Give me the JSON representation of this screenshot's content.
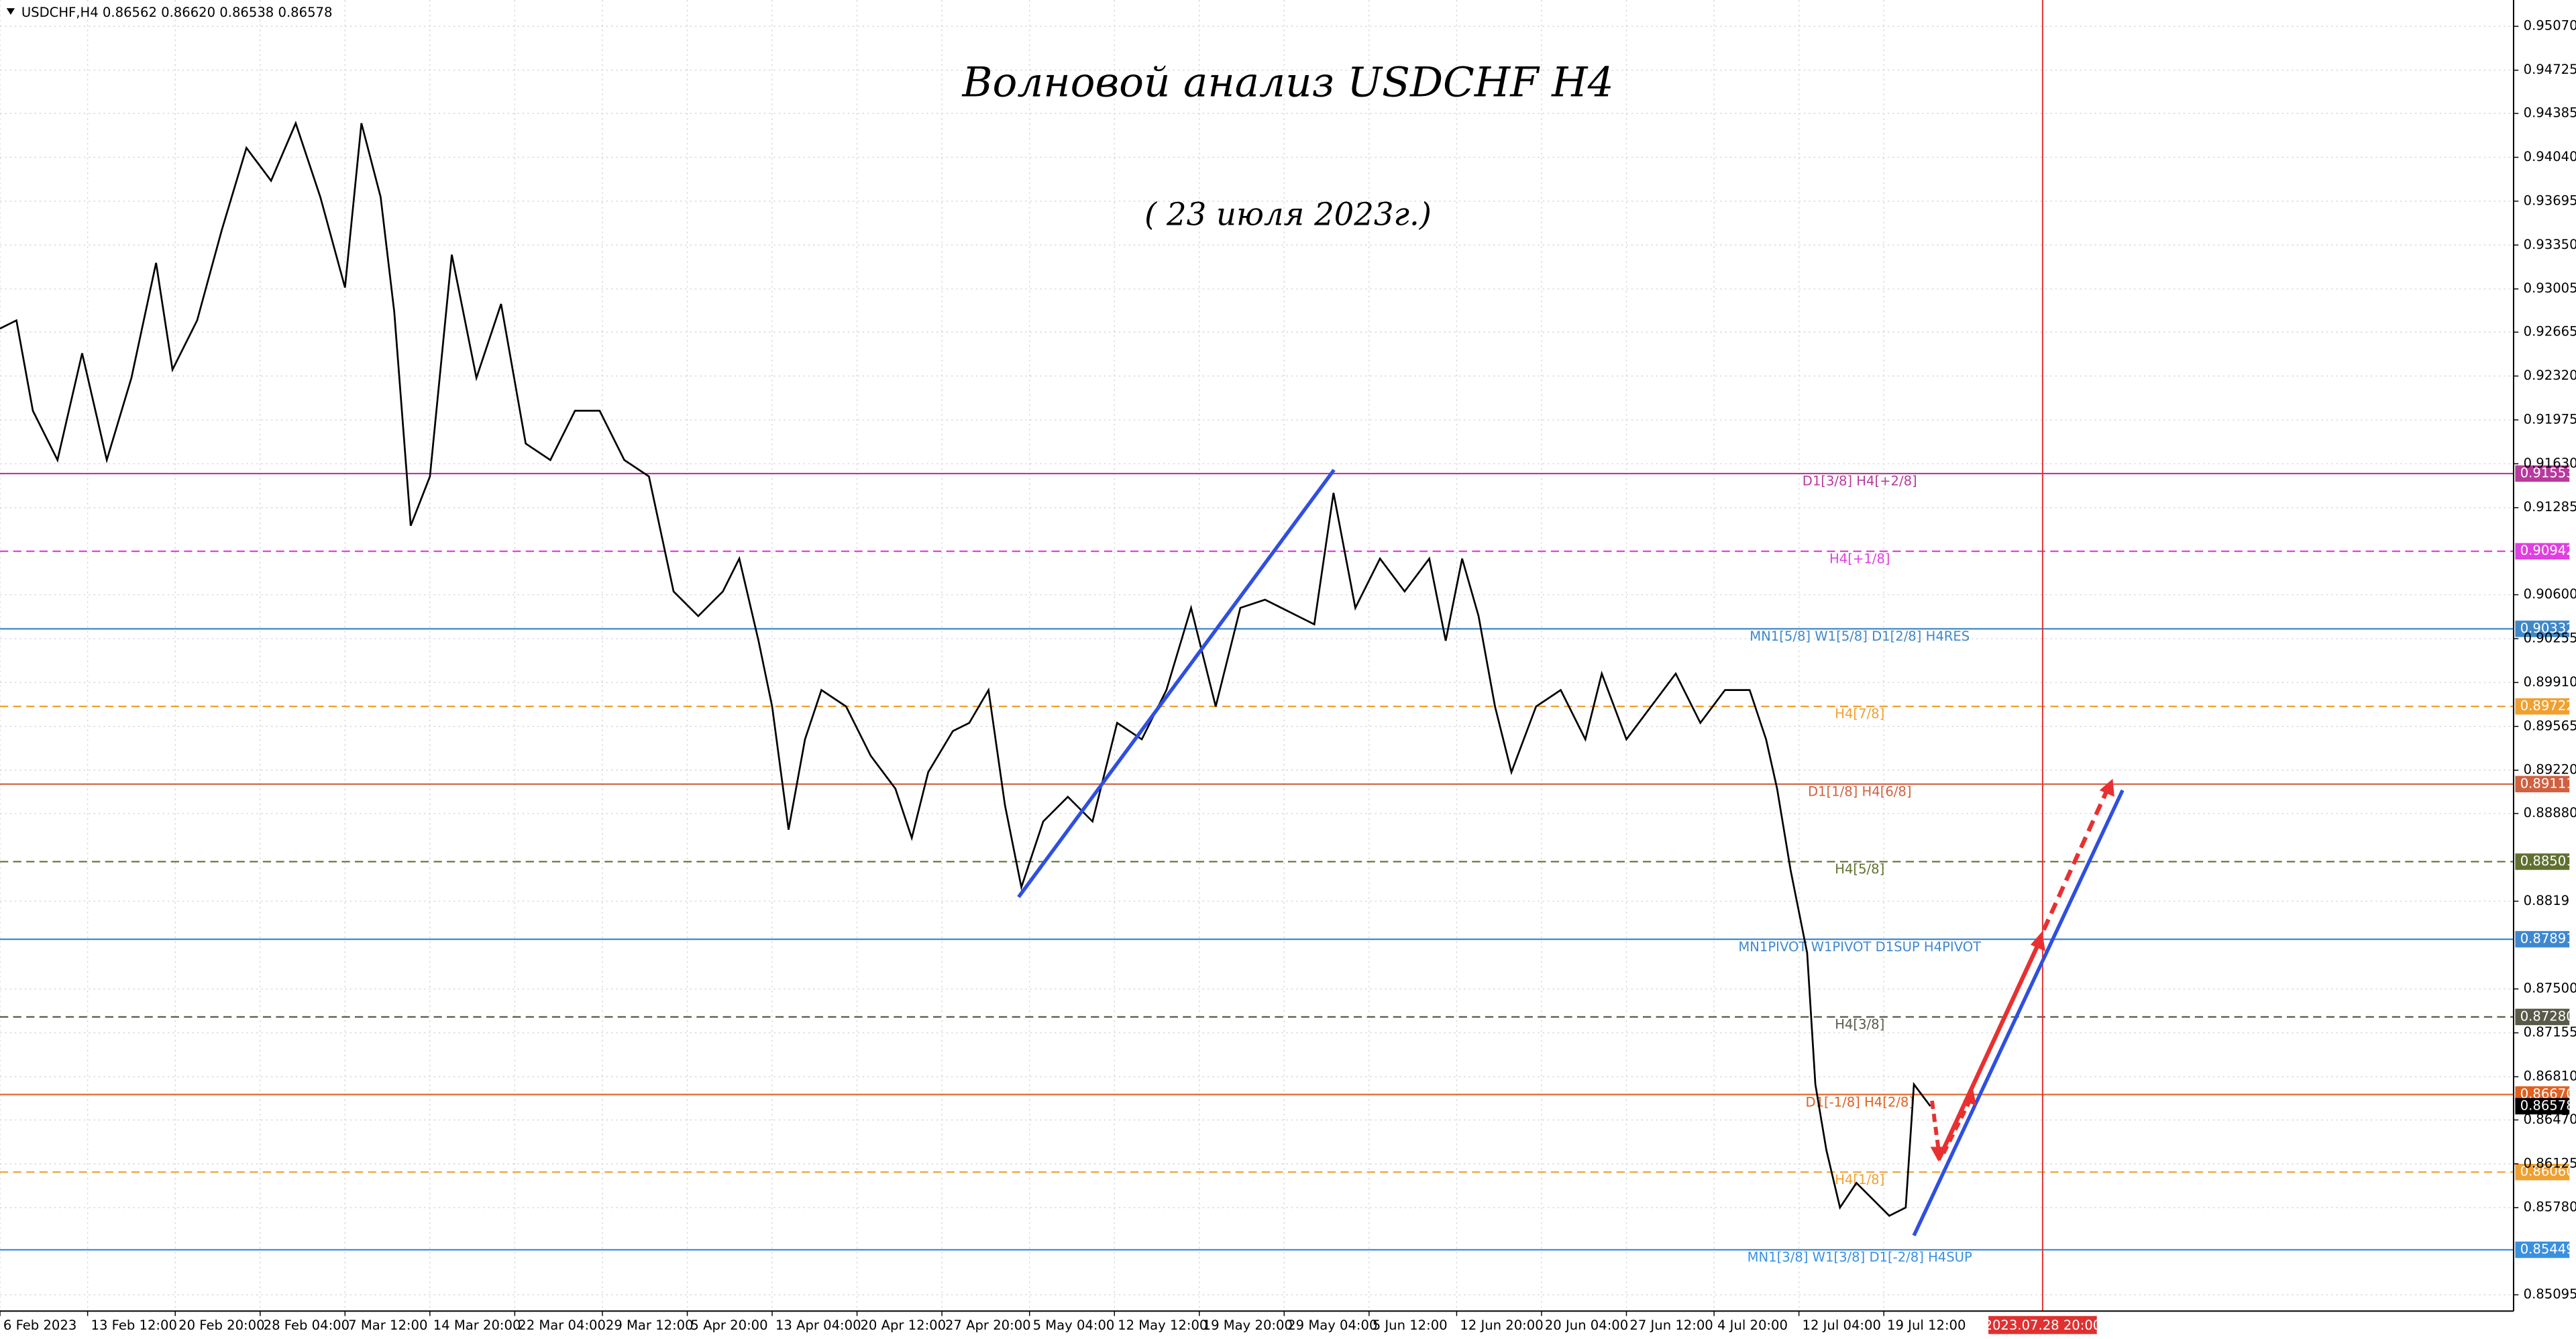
{
  "chart_data": {
    "type": "line",
    "header": "USDCHF,H4  0.86562 0.86620 0.86538 0.86578",
    "title": "Волновой анализ USDCHF H4",
    "subtitle": "( 23 июля 2023г.)",
    "color": "#000000",
    "x": [
      0,
      6,
      12,
      21,
      30,
      39,
      48,
      57,
      63,
      72,
      81,
      90,
      99,
      108,
      117,
      126,
      132,
      139,
      144,
      150,
      157,
      165,
      174,
      183,
      192,
      201,
      210,
      219,
      228,
      237,
      246,
      255,
      264,
      270,
      277,
      282,
      288,
      294,
      300,
      309,
      318,
      327,
      333,
      339,
      348,
      354,
      361,
      367,
      373,
      381,
      390,
      399,
      408,
      417,
      426,
      435,
      444,
      453,
      462,
      474,
      480,
      487,
      495,
      504,
      513,
      522,
      528,
      534,
      540,
      546,
      552,
      561,
      570,
      579,
      585,
      594,
      603,
      612,
      621,
      630,
      639,
      645,
      649,
      654,
      660,
      663,
      667,
      672,
      678,
      684,
      690,
      696,
      699,
      705
    ],
    "values": [
      0.92693,
      0.92758,
      0.92047,
      0.91659,
      0.92499,
      0.91659,
      0.92305,
      0.9321,
      0.9237,
      0.92758,
      0.93468,
      0.94114,
      0.93856,
      0.94308,
      0.93727,
      0.93016,
      0.94308,
      0.93727,
      0.92822,
      0.91143,
      0.9153,
      0.93274,
      0.92305,
      0.92887,
      0.91789,
      0.91659,
      0.92047,
      0.92047,
      0.91659,
      0.9153,
      0.90626,
      0.90432,
      0.90626,
      0.90884,
      0.90238,
      0.89721,
      0.88752,
      0.89463,
      0.89851,
      0.89721,
      0.89334,
      0.89075,
      0.88688,
      0.89205,
      0.89528,
      0.89592,
      0.89851,
      0.88946,
      0.883,
      0.88817,
      0.89011,
      0.88817,
      0.89592,
      0.89463,
      0.89851,
      0.90497,
      0.89721,
      0.90497,
      0.90561,
      0.90432,
      0.90367,
      0.91401,
      0.90497,
      0.90884,
      0.90626,
      0.90884,
      0.90238,
      0.90884,
      0.90432,
      0.89721,
      0.89205,
      0.89721,
      0.89851,
      0.89463,
      0.8998,
      0.89463,
      0.89721,
      0.8998,
      0.89592,
      0.89851,
      0.89851,
      0.89463,
      0.89075,
      0.88429,
      0.87783,
      0.8675,
      0.86233,
      0.85781,
      0.85975,
      0.85845,
      0.85716,
      0.85781,
      0.8675,
      0.86578
    ],
    "xlim": [
      0,
      918
    ],
    "ylim": [
      0.84967,
      0.95277
    ],
    "grid": true,
    "xticks": [
      {
        "value": 0,
        "label": "6 Feb 2023"
      },
      {
        "value": 32,
        "label": "13 Feb 12:00"
      },
      {
        "value": 64,
        "label": "20 Feb 20:00"
      },
      {
        "value": 95,
        "label": "28 Feb 04:00"
      },
      {
        "value": 126,
        "label": "7 Mar 12:00"
      },
      {
        "value": 157,
        "label": "14 Mar 20:00"
      },
      {
        "value": 188,
        "label": "22 Mar 04:00"
      },
      {
        "value": 220,
        "label": "29 Mar 12:00"
      },
      {
        "value": 251,
        "label": "5 Apr 20:00"
      },
      {
        "value": 282,
        "label": "13 Apr 04:00"
      },
      {
        "value": 313,
        "label": "20 Apr 12:00"
      },
      {
        "value": 344,
        "label": "27 Apr 20:00"
      },
      {
        "value": 376,
        "label": "5 May 04:00"
      },
      {
        "value": 407,
        "label": "12 May 12:00"
      },
      {
        "value": 438,
        "label": "19 May 20:00"
      },
      {
        "value": 469,
        "label": "29 May 04:00"
      },
      {
        "value": 500,
        "label": "5 Jun 12:00"
      },
      {
        "value": 532,
        "label": "12 Jun 20:00"
      },
      {
        "value": 563,
        "label": "20 Jun 04:00"
      },
      {
        "value": 594,
        "label": "27 Jun 12:00"
      },
      {
        "value": 626,
        "label": "4 Jul 20:00"
      },
      {
        "value": 657,
        "label": "12 Jul 04:00"
      },
      {
        "value": 688,
        "label": "19 Jul 12:00"
      }
    ],
    "yticks": [
      {
        "value": 0.9507,
        "label": "0.95070"
      },
      0.94725,
      0.94385,
      {
        "value": 0.9404,
        "label": "0.94040"
      },
      0.93695,
      {
        "value": 0.9335,
        "label": "0.93350"
      },
      0.93005,
      0.92665,
      {
        "value": 0.9232,
        "label": "0.92320"
      },
      0.91975,
      {
        "value": 0.9163,
        "label": "0.91630"
      },
      0.91285,
      {
        "value": 0.906,
        "label": "0.90600"
      },
      0.90255,
      {
        "value": 0.8991,
        "label": "0.89910"
      },
      0.89565,
      {
        "value": 0.8922,
        "label": "0.89220"
      },
      {
        "value": 0.8888,
        "label": "0.88880"
      },
      0.8819,
      {
        "value": 0.875,
        "label": "0.87500"
      },
      0.87155,
      {
        "value": 0.8681,
        "label": "0.86810"
      },
      {
        "value": 0.8647,
        "label": "0.86470"
      },
      0.86125,
      {
        "value": 0.8578,
        "label": "0.85780"
      },
      0.85095
    ],
    "levels": [
      {
        "value": 0.91553,
        "label": "D1[3/8] H4[+2/8]",
        "color": "#b8399c",
        "dashed": false
      },
      {
        "value": 0.90942,
        "label": "H4[+1/8]",
        "color": "#e040e0",
        "dashed": true
      },
      {
        "value": 0.90332,
        "label": "MN1[5/8] W1[5/8] D1[2/8] H4RES",
        "color": "#3f88c8",
        "dashed": false
      },
      {
        "value": 0.89722,
        "label": "H4[7/8]",
        "color": "#f0a030",
        "dashed": true
      },
      {
        "value": 0.89111,
        "label": "D1[1/8] H4[6/8]",
        "color": "#d06040",
        "dashed": false
      },
      {
        "value": 0.88501,
        "label": "H4[5/8]",
        "color": "#5f7030",
        "dashed": true
      },
      {
        "value": 0.87891,
        "label": "MN1PIVOT W1PIVOT D1SUP H4PIVOT",
        "color": "#3f88d0",
        "dashed": false
      },
      {
        "value": 0.8728,
        "tag": "0.87280",
        "label": "H4[3/8]",
        "color": "#5a5a4a",
        "dashed": true
      },
      {
        "value": 0.8667,
        "tag": "0.86670",
        "label": "D1[-1/8] H4[2/8]",
        "color": "#e06020",
        "dashed": false
      },
      {
        "value": 0.8606,
        "tag": "0.86060",
        "label": "H4[1/8]",
        "color": "#f0a030",
        "dashed": true
      },
      {
        "value": 0.85449,
        "label": "MN1[3/8] W1[3/8] D1[-2/8] H4SUP",
        "color": "#3a90e0",
        "dashed": false
      }
    ],
    "current": {
      "value": 0.86578,
      "color": "#000000"
    },
    "marker": {
      "x": 746,
      "label": "2023.07.28 20:00",
      "color": "#e03030"
    }
  }
}
